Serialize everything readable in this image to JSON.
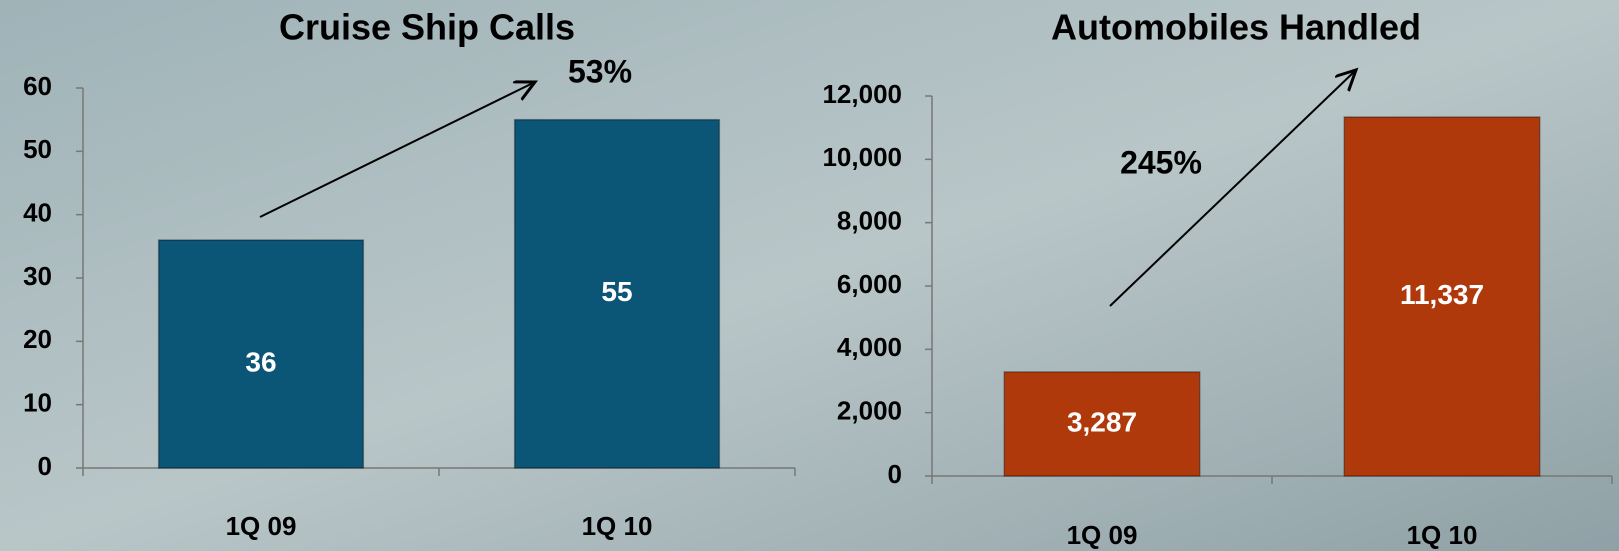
{
  "chart_data": [
    {
      "type": "bar",
      "title": "Cruise Ship Calls",
      "annotation": "53%",
      "categories": [
        "1Q 09",
        "1Q 10"
      ],
      "values": [
        36,
        55
      ],
      "color": "#0b5577",
      "ylim": [
        0,
        60
      ],
      "yticks": [
        0,
        10,
        20,
        30,
        40,
        50,
        60
      ]
    },
    {
      "type": "bar",
      "title": "Automobiles Handled",
      "annotation": "245%",
      "categories": [
        "1Q 09",
        "1Q 10"
      ],
      "values": [
        3287,
        11337
      ],
      "value_labels": [
        "3,287",
        "11,337"
      ],
      "color": "#b0390b",
      "ylim": [
        0,
        12000
      ],
      "yticks": [
        0,
        {
          "value": 2000,
          "label": "2,000"
        },
        {
          "value": 4000,
          "label": "4,000"
        },
        {
          "value": 6000,
          "label": "6,000"
        },
        {
          "value": 8000,
          "label": "8,000"
        },
        {
          "value": 10000,
          "label": "10,000"
        },
        {
          "value": 12000,
          "label": "12,000"
        }
      ]
    }
  ]
}
